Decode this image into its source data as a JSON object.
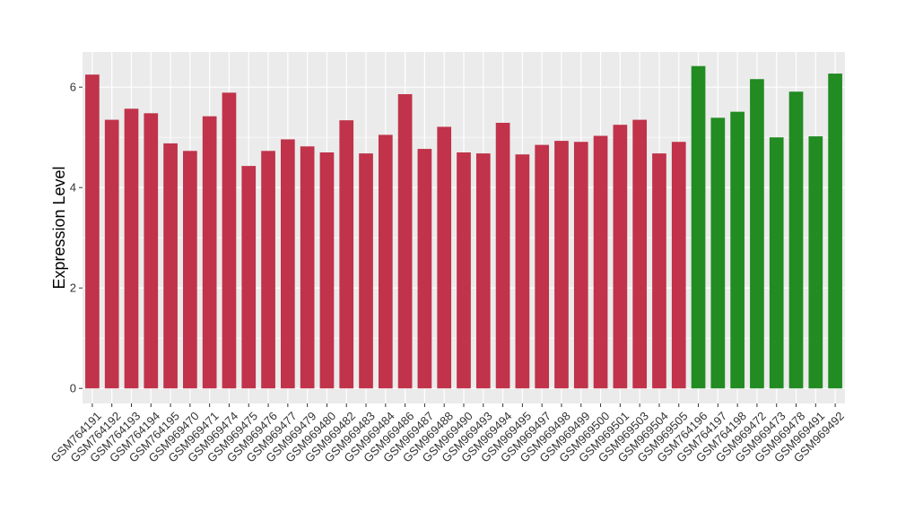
{
  "chart_data": {
    "type": "bar",
    "ylabel": "Expression Level",
    "xlabel": "",
    "ylim": [
      -0.3,
      6.7
    ],
    "yticks": [
      0,
      2,
      4,
      6
    ],
    "grid": true,
    "panel_background": "#ebebeb",
    "colors": {
      "group_a": "#c0334a",
      "group_b": "#228b22"
    },
    "categories": [
      "GSM764191",
      "GSM764192",
      "GSM764193",
      "GSM764194",
      "GSM764195",
      "GSM969470",
      "GSM969471",
      "GSM969474",
      "GSM969475",
      "GSM969476",
      "GSM969477",
      "GSM969479",
      "GSM969480",
      "GSM969482",
      "GSM969483",
      "GSM969484",
      "GSM969486",
      "GSM969487",
      "GSM969488",
      "GSM969490",
      "GSM969493",
      "GSM969494",
      "GSM969495",
      "GSM969497",
      "GSM969498",
      "GSM969499",
      "GSM969500",
      "GSM969501",
      "GSM969503",
      "GSM969504",
      "GSM969505",
      "GSM764196",
      "GSM764197",
      "GSM764198",
      "GSM969472",
      "GSM969473",
      "GSM969478",
      "GSM969491",
      "GSM969492"
    ],
    "values": [
      6.25,
      5.35,
      5.57,
      5.48,
      4.88,
      4.73,
      5.42,
      5.89,
      4.43,
      4.73,
      4.96,
      4.82,
      4.7,
      5.34,
      4.68,
      5.05,
      5.86,
      4.77,
      5.21,
      4.7,
      4.68,
      5.29,
      4.66,
      4.85,
      4.93,
      4.91,
      5.03,
      5.25,
      5.35,
      4.68,
      4.91,
      6.42,
      5.39,
      5.51,
      6.16,
      5.0,
      5.91,
      5.02,
      6.27
    ],
    "groups": [
      "a",
      "a",
      "a",
      "a",
      "a",
      "a",
      "a",
      "a",
      "a",
      "a",
      "a",
      "a",
      "a",
      "a",
      "a",
      "a",
      "a",
      "a",
      "a",
      "a",
      "a",
      "a",
      "a",
      "a",
      "a",
      "a",
      "a",
      "a",
      "a",
      "a",
      "a",
      "b",
      "b",
      "b",
      "b",
      "b",
      "b",
      "b",
      "b"
    ]
  }
}
